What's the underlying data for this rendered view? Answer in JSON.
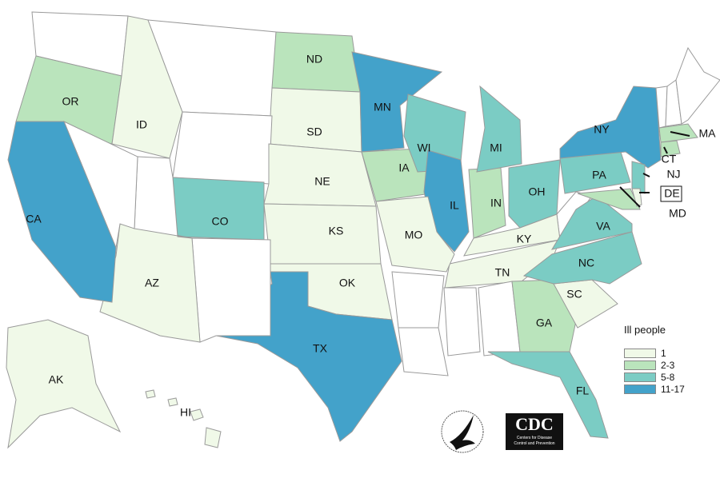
{
  "legend": {
    "title": "Ill people",
    "items": [
      {
        "label": "1",
        "color": "#f0f9e8"
      },
      {
        "label": "2-3",
        "color": "#bae4bc"
      },
      {
        "label": "5-8",
        "color": "#7bccc4"
      },
      {
        "label": "11-17",
        "color": "#43a2ca"
      }
    ]
  },
  "no_cases_color": "#ffffff",
  "states": {
    "WA": null,
    "OR": "2-3",
    "ID": "1",
    "MT": null,
    "ND": "2-3",
    "SD": "1",
    "WY": null,
    "NE": "1",
    "CO": "5-8",
    "KS": "1",
    "OK": "1",
    "TX": "11-17",
    "NM": null,
    "AZ": "1",
    "UT": null,
    "NV": null,
    "CA": "11-17",
    "MN": "11-17",
    "IA": "2-3",
    "WI": "5-8",
    "IL": "11-17",
    "IN": "2-3",
    "MI": "5-8",
    "OH": "5-8",
    "KY": "1",
    "TN": "1",
    "MO": "1",
    "GA": "2-3",
    "FL": "5-8",
    "SC": "1",
    "NC": "5-8",
    "VA": "5-8",
    "PA": "5-8",
    "NY": "11-17",
    "NJ": "5-8",
    "MD": "2-3",
    "DE": "1",
    "CT": "2-3",
    "MA": "2-3",
    "AK": "1",
    "HI": "1"
  },
  "logos": {
    "hhs": "Department of Health & Human Services USA",
    "cdc": "CDC",
    "cdc_sub": "Centers for Disease Control and Prevention"
  }
}
